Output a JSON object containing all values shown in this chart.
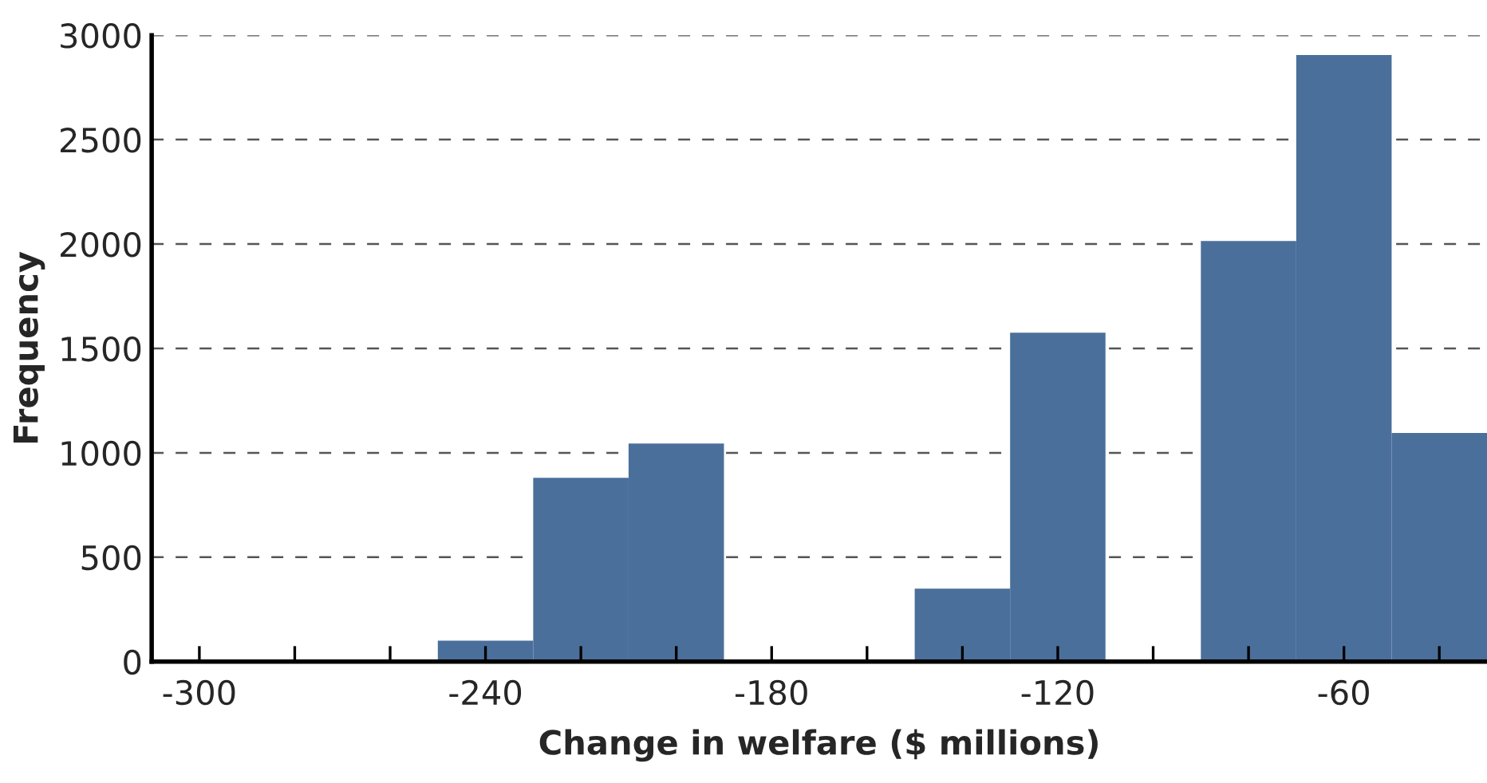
{
  "chart_data": {
    "type": "histogram",
    "xlabel": "Change in welfare ($ millions)",
    "ylabel": "Frequency",
    "color": "#4a6f9b",
    "bins": [
      -290,
      -270,
      -250,
      -230,
      -210,
      -190,
      -170,
      -150,
      -130,
      -110,
      -90,
      -70,
      -50,
      -30
    ],
    "values": [
      4,
      10,
      100,
      880,
      1045,
      8,
      5,
      350,
      1575,
      8,
      2015,
      2905,
      1095
    ],
    "xlim": [
      -310,
      -30
    ],
    "ylim": [
      0,
      3000
    ],
    "xticks": [
      -300,
      {
        "value": -280,
        "label": null
      },
      {
        "value": -260,
        "label": null
      },
      -240,
      {
        "value": -220,
        "label": null
      },
      {
        "value": -200,
        "label": null
      },
      -180,
      {
        "value": -160,
        "label": null
      },
      {
        "value": -140,
        "label": null
      },
      -120,
      {
        "value": -100,
        "label": null
      },
      {
        "value": -80,
        "label": null
      },
      -60,
      {
        "value": -40,
        "label": null
      }
    ],
    "yticks": [
      0,
      500,
      1000,
      1500,
      2000,
      2500,
      3000
    ],
    "grid": "y"
  }
}
